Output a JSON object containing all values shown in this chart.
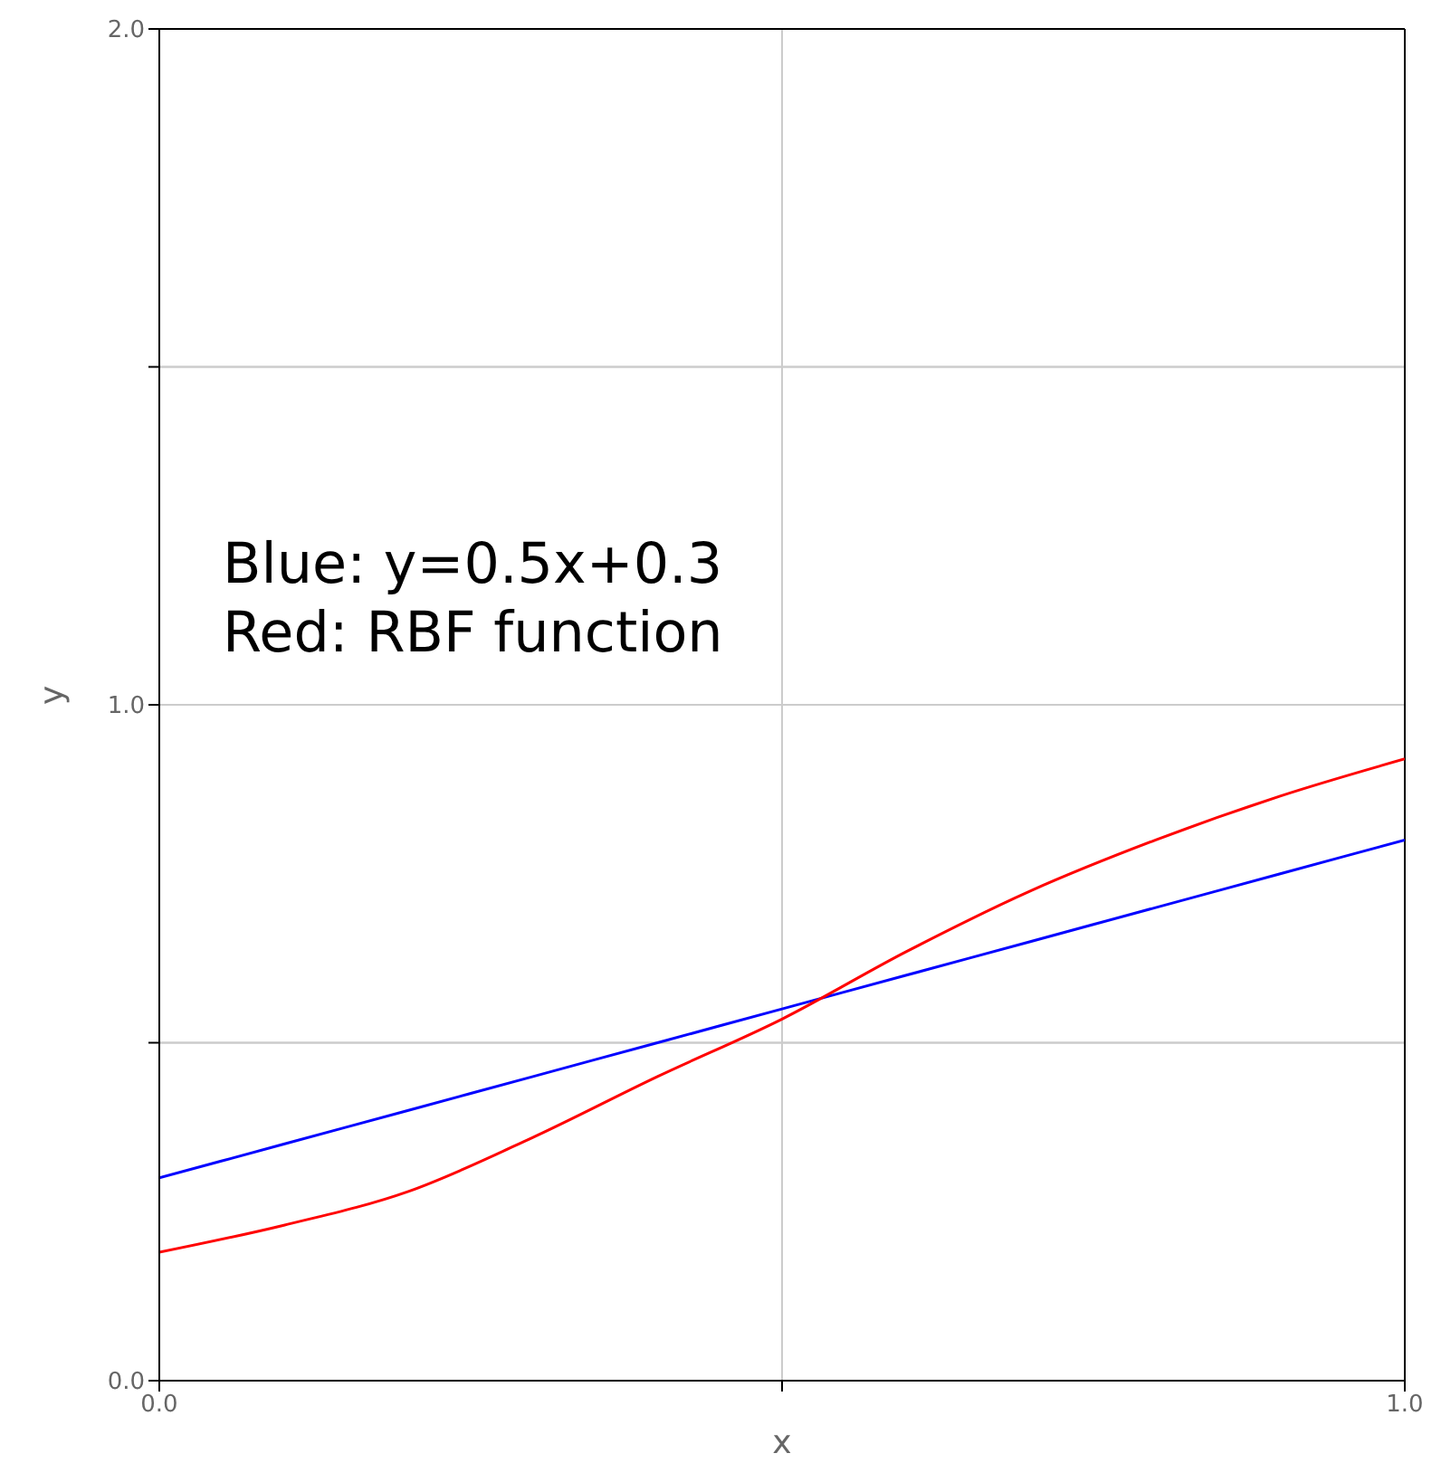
{
  "chart_data": {
    "type": "line",
    "xlabel": "x",
    "ylabel": "y",
    "x": [
      0,
      0.1,
      0.2,
      0.3,
      0.4,
      0.5,
      0.6,
      0.7,
      0.8,
      0.9,
      1.0
    ],
    "series": [
      {
        "color": "#0000ff",
        "values": [
          0.3,
          0.35,
          0.4,
          0.45,
          0.5,
          0.55,
          0.6,
          0.65,
          0.7,
          0.75,
          0.8
        ]
      },
      {
        "color": "#ff0000",
        "values": [
          0.19,
          0.23,
          0.28,
          0.36,
          0.45,
          0.535,
          0.635,
          0.725,
          0.8,
          0.865,
          0.92
        ]
      }
    ],
    "xlim": [
      0,
      1
    ],
    "ylim": [
      0,
      2
    ],
    "xticks": [
      {
        "value": 0,
        "label": "0.0"
      },
      {
        "value": 0.5,
        "label": null
      },
      {
        "value": 1,
        "label": "1.0"
      }
    ],
    "yticks": [
      {
        "value": 0,
        "label": "0.0"
      },
      {
        "value": 0.5,
        "label": null
      },
      {
        "value": 1,
        "label": "1.0"
      },
      {
        "value": 1.5,
        "label": null
      },
      {
        "value": 2,
        "label": "2.0"
      }
    ],
    "grid": true,
    "marker": "none",
    "line_style": "solid",
    "annotations": [
      "Blue: y=0.5x+0.3",
      "Red: RBF function"
    ]
  }
}
